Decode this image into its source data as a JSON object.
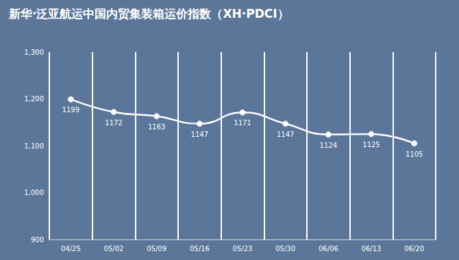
{
  "chart_data": {
    "type": "line",
    "title": "新华·泛亚航运中国内贸集装箱运价指数（XH·PDCI）",
    "categories": [
      "04/25",
      "05/02",
      "05/09",
      "05/16",
      "05/23",
      "05/30",
      "06/06",
      "06/13",
      "06/20"
    ],
    "values": [
      1199,
      1172,
      1163,
      1147,
      1171,
      1147,
      1124,
      1125,
      1105
    ],
    "color": "#ffffff",
    "ylim": [
      900,
      1300
    ],
    "yticks": [
      900,
      {
        "value": 1000,
        "label": "1,000"
      },
      {
        "value": 1100,
        "label": "1,100"
      },
      {
        "value": 1200,
        "label": "1,200"
      },
      {
        "value": 1300,
        "label": "1,300"
      }
    ],
    "grid": true,
    "data_labels": true,
    "marker": "circle",
    "line_style": "solid"
  }
}
